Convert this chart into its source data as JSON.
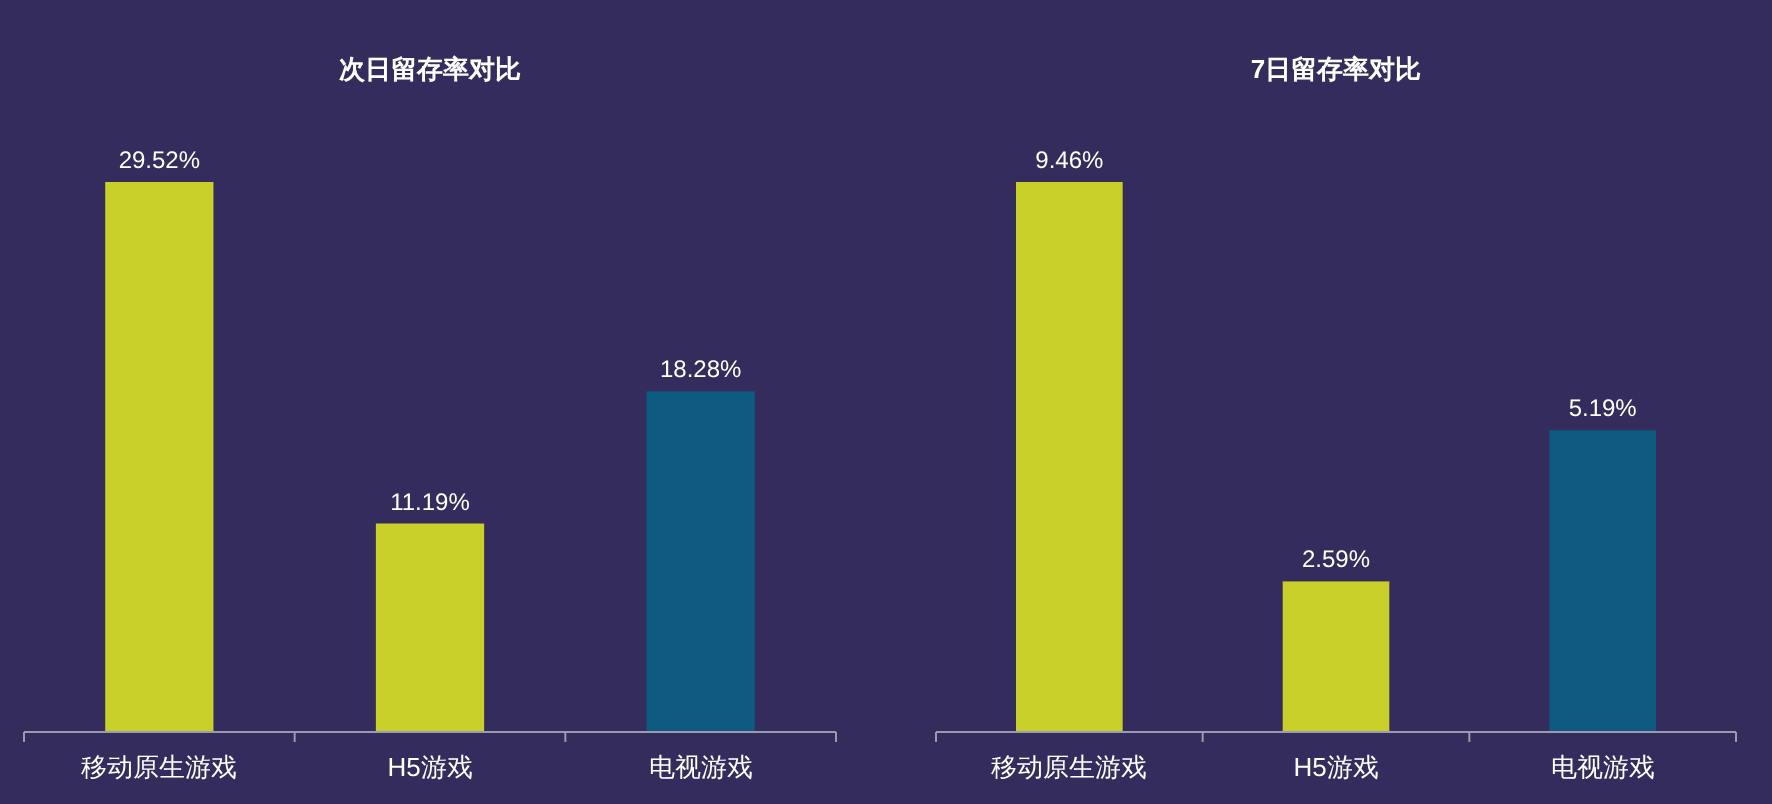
{
  "chart_data": [
    {
      "type": "bar",
      "title": "次日留存率对比",
      "categories": [
        "移动原生游戏",
        "H5游戏",
        "电视游戏"
      ],
      "values": [
        29.52,
        11.19,
        18.28
      ],
      "value_labels": [
        "29.52%",
        "11.19%",
        "18.28%"
      ],
      "colors": [
        "#c9d02a",
        "#c9d02a",
        "#0f5a80"
      ]
    },
    {
      "type": "bar",
      "title": "7日留存率对比",
      "categories": [
        "移动原生游戏",
        "H5游戏",
        "电视游戏"
      ],
      "values": [
        9.46,
        2.59,
        5.19
      ],
      "value_labels": [
        "9.46%",
        "2.59%",
        "5.19%"
      ],
      "colors": [
        "#c9d02a",
        "#c9d02a",
        "#0f5a80"
      ]
    }
  ]
}
